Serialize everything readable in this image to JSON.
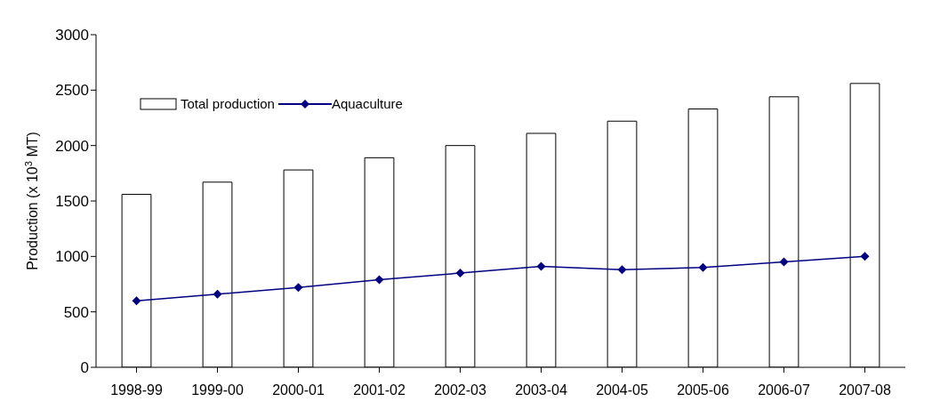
{
  "chart_data": {
    "type": "bar",
    "ylabel": "Production (x 10$^{3}$ MT)",
    "categories": [
      "1998-99",
      "1999-00",
      "2000-01",
      "2001-02",
      "2002-03",
      "2003-04",
      "2004-05",
      "2005-06",
      "2006-07",
      "2007-08"
    ],
    "series": [
      {
        "name": "Total production",
        "color": "#ffffff",
        "values": [
          1560,
          1670,
          1780,
          1890,
          2000,
          2110,
          2220,
          2330,
          2440,
          2560
        ]
      },
      {
        "name": "Aquaculture",
        "type": "line",
        "color": "#000080",
        "marker": "diamond",
        "line_style": "solid",
        "values": [
          600,
          660,
          720,
          790,
          850,
          910,
          880,
          900,
          950,
          1000
        ]
      }
    ],
    "ylim": [
      0,
      3000
    ],
    "yticks": [
      0,
      500,
      1000,
      1500,
      2000,
      2500,
      3000
    ],
    "grid": false,
    "legend": "top left"
  }
}
